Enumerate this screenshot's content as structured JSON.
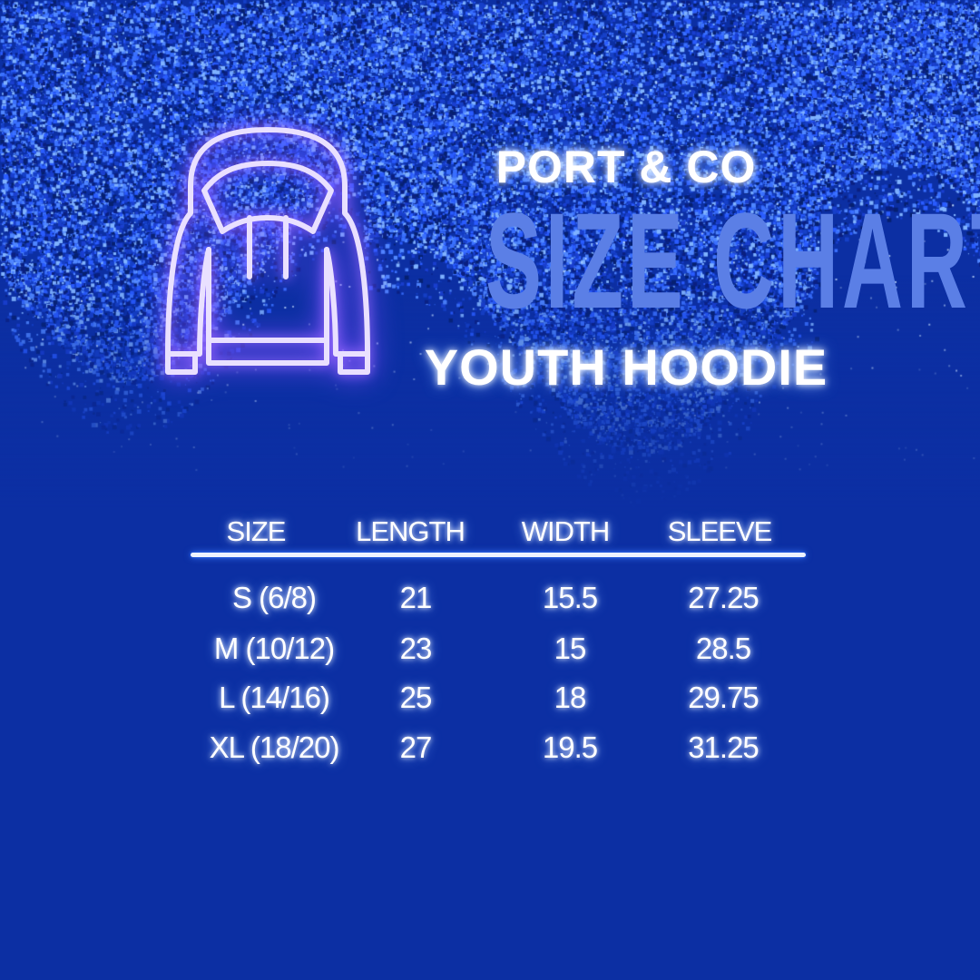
{
  "header": {
    "brand": "PORT & CO",
    "title": "SIZE CHART",
    "subtitle": "YOUTH HOODIE",
    "icon": "hoodie-icon"
  },
  "table": {
    "columns": [
      "SIZE",
      "LENGTH",
      "WIDTH",
      "SLEEVE"
    ],
    "rows": [
      [
        "S (6/8)",
        "21",
        "15.5",
        "27.25"
      ],
      [
        "M (10/12)",
        "23",
        "15",
        "28.5"
      ],
      [
        "L (14/16)",
        "25",
        "18",
        "29.75"
      ],
      [
        "XL (18/20)",
        "27",
        "19.5",
        "31.25"
      ]
    ]
  },
  "colors": {
    "background": "#0c2fa3",
    "title": "#5b7fe6",
    "neon_icon": "#b18cff",
    "rule": "#eef3ff"
  }
}
